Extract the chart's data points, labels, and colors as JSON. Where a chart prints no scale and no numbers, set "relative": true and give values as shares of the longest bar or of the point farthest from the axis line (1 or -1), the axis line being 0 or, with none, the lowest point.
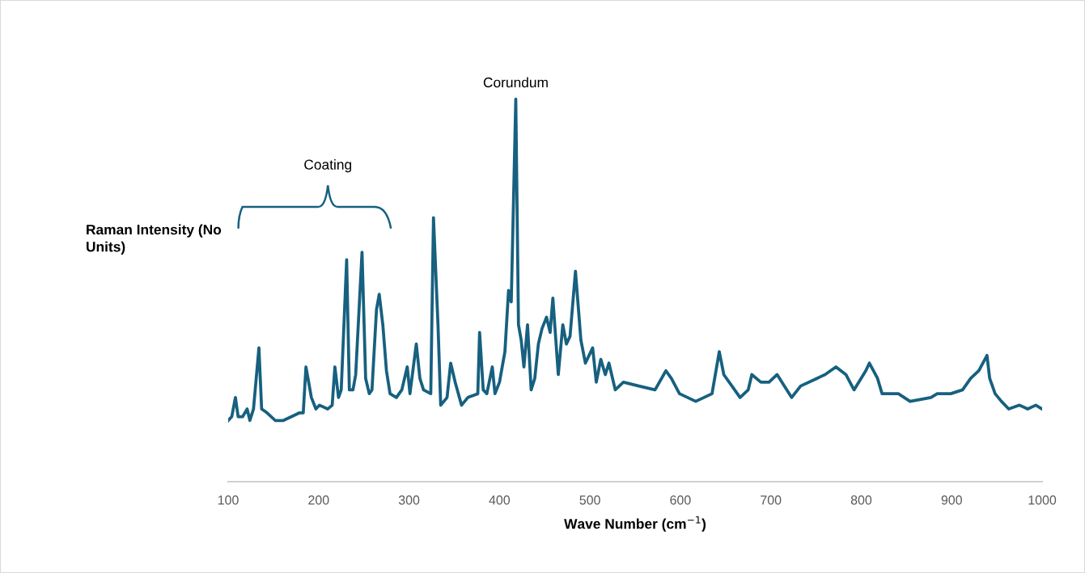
{
  "chart_data": {
    "type": "line",
    "relative": true,
    "xlabel": "Wave Number (cm$^{−1}$)",
    "ylabel": "Raman Intensity (No Units)",
    "xlim": [
      100,
      1000
    ],
    "xticks": [
      100,
      200,
      300,
      400,
      500,
      600,
      700,
      800,
      900,
      1000
    ],
    "grid": false,
    "legend": false,
    "marker": "none",
    "line_style": "solid",
    "tick_labels": "x",
    "annotations": [
      {
        "text": "Corundum",
        "x": 418,
        "y": 1.0
      },
      "Coating"
    ],
    "series": [
      {
        "color": "#17607f",
        "x": [
          100,
          104,
          108,
          111,
          116,
          121,
          124,
          128,
          134,
          137,
          143,
          152,
          161,
          170,
          179,
          183,
          186,
          189,
          192,
          197,
          201,
          210,
          215,
          218,
          222,
          225,
          231,
          234,
          238,
          241,
          248,
          252,
          256,
          259,
          264,
          267,
          271,
          275,
          279,
          286,
          292,
          298,
          301,
          308,
          312,
          316,
          324,
          327,
          332,
          335,
          342,
          346,
          351,
          358,
          365,
          376,
          378,
          382,
          386,
          392,
          395,
          400,
          406,
          410,
          413,
          418,
          421,
          424,
          427,
          431,
          435,
          439,
          443,
          447,
          452,
          456,
          459,
          462,
          465,
          470,
          474,
          478,
          484,
          487,
          490,
          495,
          503,
          507,
          512,
          517,
          521,
          528,
          537,
          554,
          572,
          584,
          590,
          599,
          617,
          635,
          643,
          648,
          657,
          666,
          675,
          679,
          689,
          698,
          707,
          715,
          723,
          733,
          751,
          760,
          772,
          783,
          792,
          805,
          809,
          818,
          823,
          841,
          854,
          877,
          884,
          899,
          912,
          921,
          930,
          939,
          942,
          948,
          955,
          963,
          975,
          984,
          993,
          1000
        ],
        "values": [
          0.16,
          0.17,
          0.22,
          0.17,
          0.17,
          0.19,
          0.16,
          0.19,
          0.35,
          0.19,
          0.18,
          0.16,
          0.16,
          0.17,
          0.18,
          0.18,
          0.3,
          0.26,
          0.22,
          0.19,
          0.2,
          0.19,
          0.2,
          0.3,
          0.22,
          0.24,
          0.58,
          0.24,
          0.24,
          0.28,
          0.6,
          0.27,
          0.23,
          0.24,
          0.45,
          0.49,
          0.41,
          0.29,
          0.23,
          0.22,
          0.24,
          0.3,
          0.23,
          0.36,
          0.27,
          0.24,
          0.23,
          0.69,
          0.41,
          0.2,
          0.22,
          0.31,
          0.26,
          0.2,
          0.22,
          0.23,
          0.39,
          0.24,
          0.23,
          0.3,
          0.23,
          0.26,
          0.34,
          0.5,
          0.47,
          1.0,
          0.41,
          0.37,
          0.3,
          0.41,
          0.24,
          0.27,
          0.36,
          0.4,
          0.43,
          0.39,
          0.48,
          0.38,
          0.28,
          0.41,
          0.36,
          0.38,
          0.55,
          0.46,
          0.37,
          0.31,
          0.35,
          0.26,
          0.32,
          0.28,
          0.31,
          0.24,
          0.26,
          0.25,
          0.24,
          0.29,
          0.27,
          0.23,
          0.21,
          0.23,
          0.34,
          0.28,
          0.25,
          0.22,
          0.24,
          0.28,
          0.26,
          0.26,
          0.28,
          0.25,
          0.22,
          0.25,
          0.27,
          0.28,
          0.3,
          0.28,
          0.24,
          0.29,
          0.31,
          0.27,
          0.23,
          0.23,
          0.21,
          0.22,
          0.23,
          0.23,
          0.24,
          0.27,
          0.29,
          0.33,
          0.27,
          0.23,
          0.21,
          0.19,
          0.2,
          0.19,
          0.2,
          0.19
        ]
      }
    ]
  }
}
